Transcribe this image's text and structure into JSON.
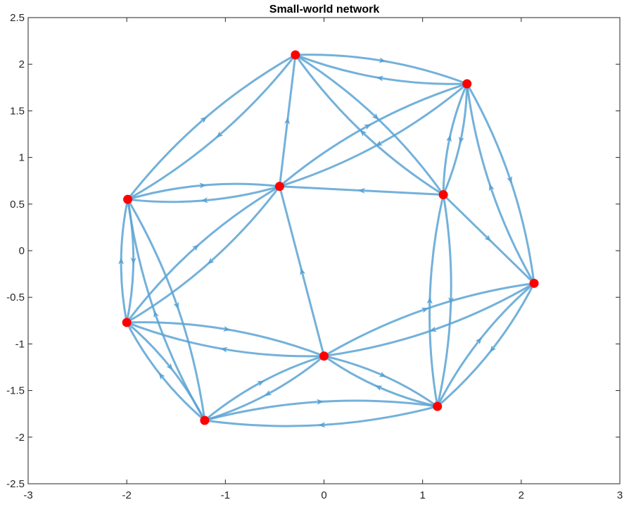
{
  "chart_data": {
    "type": "network",
    "title": "Small-world network",
    "xlim": [
      -3,
      3
    ],
    "ylim": [
      -2.5,
      2.5
    ],
    "xticks": [
      "-3",
      "-2",
      "-1",
      "0",
      "1",
      "2",
      "3"
    ],
    "xtick_values": [
      -3,
      -2,
      -1,
      0,
      1,
      2,
      3
    ],
    "yticks": [
      "2.5",
      "2",
      "1.5",
      "1",
      "0.5",
      "0",
      "-0.5",
      "-1",
      "-1.5",
      "-2",
      "-2.5"
    ],
    "ytick_values": [
      2.5,
      2,
      1.5,
      1,
      0.5,
      0,
      -0.5,
      -1,
      -1.5,
      -2,
      -2.5
    ],
    "colors": {
      "edge": "#5AA3D4",
      "node": "#FF0000",
      "axis": "#262626"
    },
    "nodes": [
      {
        "id": 1,
        "x": 0.0,
        "y": -1.13
      },
      {
        "id": 2,
        "x": 1.15,
        "y": -1.67
      },
      {
        "id": 3,
        "x": -1.21,
        "y": -1.82
      },
      {
        "id": 4,
        "x": -2.0,
        "y": -0.77
      },
      {
        "id": 5,
        "x": -1.99,
        "y": 0.55
      },
      {
        "id": 6,
        "x": -0.45,
        "y": 0.69
      },
      {
        "id": 7,
        "x": -0.29,
        "y": 2.1
      },
      {
        "id": 8,
        "x": 1.45,
        "y": 1.79
      },
      {
        "id": 9,
        "x": 1.21,
        "y": 0.6
      },
      {
        "id": 10,
        "x": 2.13,
        "y": -0.35
      }
    ],
    "edges": [
      {
        "from": 1,
        "to": 6,
        "curve": 0
      },
      {
        "from": 1,
        "to": 2,
        "curve": 0.1
      },
      {
        "from": 2,
        "to": 1,
        "curve": 0.1
      },
      {
        "from": 1,
        "to": 3,
        "curve": 0.1
      },
      {
        "from": 3,
        "to": 1,
        "curve": 0.1
      },
      {
        "from": 1,
        "to": 4,
        "curve": 0.1
      },
      {
        "from": 4,
        "to": 1,
        "curve": 0.1
      },
      {
        "from": 1,
        "to": 10,
        "curve": 0.1
      },
      {
        "from": 10,
        "to": 1,
        "curve": 0.1
      },
      {
        "from": 2,
        "to": 3,
        "curve": 0.1
      },
      {
        "from": 3,
        "to": 2,
        "curve": 0.1
      },
      {
        "from": 2,
        "to": 9,
        "curve": 0.1
      },
      {
        "from": 9,
        "to": 2,
        "curve": 0.1
      },
      {
        "from": 2,
        "to": 10,
        "curve": 0.1
      },
      {
        "from": 10,
        "to": 2,
        "curve": 0.1
      },
      {
        "from": 3,
        "to": 4,
        "curve": 0.1
      },
      {
        "from": 4,
        "to": 3,
        "curve": 0.1
      },
      {
        "from": 3,
        "to": 5,
        "curve": 0.1
      },
      {
        "from": 5,
        "to": 3,
        "curve": 0.1
      },
      {
        "from": 4,
        "to": 5,
        "curve": 0.1
      },
      {
        "from": 5,
        "to": 4,
        "curve": 0.1
      },
      {
        "from": 4,
        "to": 6,
        "curve": 0.1
      },
      {
        "from": 6,
        "to": 4,
        "curve": 0.1
      },
      {
        "from": 5,
        "to": 6,
        "curve": 0.1
      },
      {
        "from": 6,
        "to": 5,
        "curve": 0.1
      },
      {
        "from": 5,
        "to": 7,
        "curve": 0.1
      },
      {
        "from": 7,
        "to": 5,
        "curve": 0.1
      },
      {
        "from": 6,
        "to": 7,
        "curve": 0
      },
      {
        "from": 6,
        "to": 8,
        "curve": 0.1
      },
      {
        "from": 8,
        "to": 6,
        "curve": 0.1
      },
      {
        "from": 9,
        "to": 6,
        "curve": 0
      },
      {
        "from": 7,
        "to": 8,
        "curve": 0.1
      },
      {
        "from": 8,
        "to": 7,
        "curve": 0.1
      },
      {
        "from": 7,
        "to": 9,
        "curve": 0.1
      },
      {
        "from": 9,
        "to": 7,
        "curve": 0.1
      },
      {
        "from": 8,
        "to": 9,
        "curve": 0.1
      },
      {
        "from": 9,
        "to": 8,
        "curve": 0.1
      },
      {
        "from": 8,
        "to": 10,
        "curve": 0.1
      },
      {
        "from": 10,
        "to": 8,
        "curve": 0.1
      },
      {
        "from": 9,
        "to": 10,
        "curve": 0
      }
    ]
  }
}
